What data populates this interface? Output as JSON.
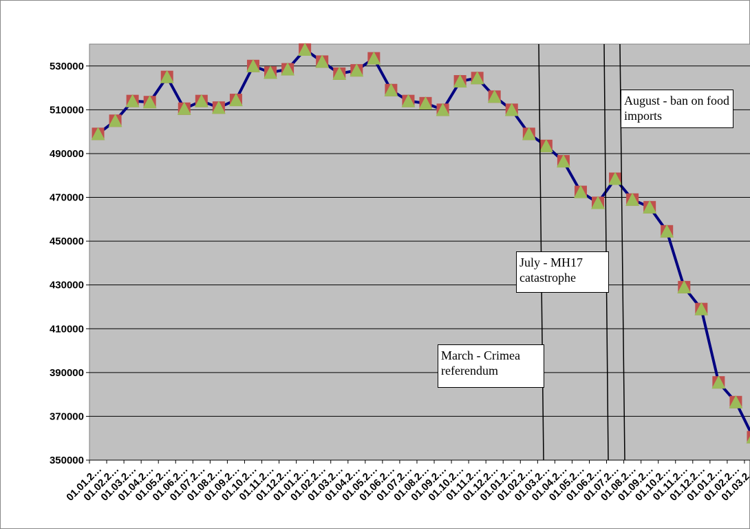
{
  "chart_data": {
    "type": "line",
    "categories": [
      "01.01.2…",
      "01.02.2…",
      "01.03.2…",
      "01.04.2…",
      "01.05.2…",
      "01.06.2…",
      "01.07.2…",
      "01.08.2…",
      "01.09.2…",
      "01.10.2…",
      "01.11.2…",
      "01.12.2…",
      "01.01.2…",
      "01.02.2…",
      "01.03.2…",
      "01.04.2…",
      "01.05.2…",
      "01.06.2…",
      "01.07.2…",
      "01.08.2…",
      "01.09.2…",
      "01.10.2…",
      "01.11.2…",
      "01.12.2…",
      "01.01.2…",
      "01.02.2…",
      "01.03.2…",
      "01.04.2…",
      "01.05.2…",
      "01.06.2…",
      "01.07.2…",
      "01.08.2…",
      "01.09.2…",
      "01.10.2…",
      "01.11.2…",
      "01.12.2…",
      "01.01.2…",
      "01.02.2…",
      "01.03.2…"
    ],
    "values": [
      499000,
      505000,
      514000,
      513500,
      525000,
      510500,
      514000,
      511000,
      514500,
      530000,
      527000,
      528500,
      537500,
      532000,
      526500,
      528000,
      533500,
      519000,
      514000,
      513000,
      510000,
      523000,
      524500,
      516000,
      510000,
      499000,
      493500,
      486500,
      472500,
      467500,
      478500,
      469000,
      465500,
      454500,
      429000,
      419000,
      385500,
      376500,
      360500
    ],
    "color": "#000080",
    "marker_color": "#c0504d",
    "marker_inner_color": "#9bbb59",
    "background": "#c0c0c0",
    "ylim": [
      350000,
      540000
    ],
    "yticks": [
      350000,
      370000,
      390000,
      410000,
      430000,
      450000,
      470000,
      490000,
      510000,
      530000
    ],
    "grid": true,
    "annotations": [
      {
        "text": "March - Crimea referendum"
      },
      {
        "text": "July - MH17 catastrophe"
      },
      {
        "text": "August - ban on food imports"
      }
    ]
  }
}
